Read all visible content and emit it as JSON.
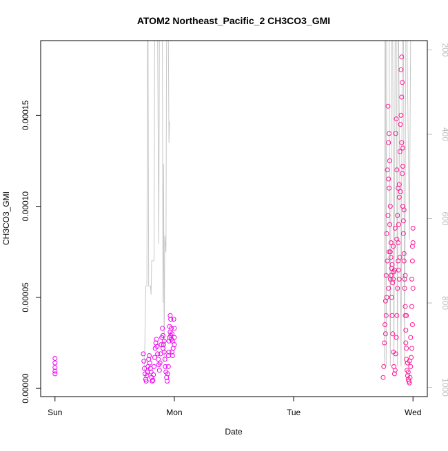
{
  "chart_data": {
    "type": "scatter",
    "title": "ATOM2 Northeast_Pacific_2 CH3CO3_GMI",
    "xlabel": "Date",
    "ylabel": "CH3CO3_GMI",
    "x_ticks": [
      "Sun",
      "Mon",
      "Tue",
      "Wed"
    ],
    "x_tick_positions_days": [
      0,
      1,
      2,
      3
    ],
    "xlim_days": [
      -0.12,
      3.12
    ],
    "ylim": [
      -4.5e-06,
      0.000191
    ],
    "y_ticks": [
      "0.00000",
      "0.00005",
      "0.00010",
      "0.00015"
    ],
    "y_tick_values": [
      0.0,
      5e-05,
      0.0001,
      0.00015
    ],
    "right_axis": {
      "ticks": [
        "200",
        "400",
        "600",
        "800",
        "1000"
      ],
      "values": [
        200,
        400,
        600,
        800,
        1000
      ],
      "ylim": [
        1022,
        178
      ],
      "color": "#bdbdbd",
      "series_color": "#c8c8c8"
    },
    "colors": {
      "early": "#ee00ee",
      "late": "#ff1493",
      "pressure": "#c8c8c8"
    },
    "pressure_series": {
      "name": "",
      "points": [
        [
          0.75,
          960
        ],
        [
          0.76,
          760
        ],
        [
          0.77,
          760
        ],
        [
          0.775,
          175
        ],
        [
          0.78,
          175
        ],
        [
          0.785,
          760
        ],
        [
          0.8,
          760
        ],
        [
          0.805,
          780
        ],
        [
          0.81,
          700
        ],
        [
          0.83,
          700
        ],
        [
          0.835,
          175
        ],
        [
          0.84,
          175
        ],
        [
          0.86,
          175
        ],
        [
          0.87,
          660
        ],
        [
          0.875,
          175
        ],
        [
          0.88,
          175
        ],
        [
          0.9,
          175
        ],
        [
          0.905,
          800
        ],
        [
          0.91,
          470
        ],
        [
          0.915,
          940
        ],
        [
          0.92,
          640
        ],
        [
          0.93,
          680
        ],
        [
          0.935,
          175
        ],
        [
          0.94,
          175
        ],
        [
          0.95,
          175
        ],
        [
          0.955,
          420
        ],
        [
          0.96,
          370
        ],
        [
          2.76,
          950
        ],
        [
          2.765,
          175
        ],
        [
          2.77,
          175
        ],
        [
          2.775,
          950
        ],
        [
          2.78,
          175
        ],
        [
          2.8,
          175
        ],
        [
          2.81,
          950
        ],
        [
          2.82,
          175
        ],
        [
          2.83,
          175
        ],
        [
          2.84,
          950
        ],
        [
          2.85,
          175
        ],
        [
          2.86,
          175
        ],
        [
          2.87,
          950
        ],
        [
          2.875,
          175
        ],
        [
          2.88,
          175
        ],
        [
          2.9,
          950
        ],
        [
          2.91,
          175
        ],
        [
          2.92,
          175
        ],
        [
          2.93,
          950
        ],
        [
          2.94,
          175
        ],
        [
          2.95,
          175
        ],
        [
          2.97,
          650
        ],
        [
          2.98,
          175
        ],
        [
          2.99,
          175
        ]
      ]
    },
    "series_early": {
      "name": "",
      "color": "#ee00ee",
      "points": [
        [
          0.0,
          1.65e-05
        ],
        [
          0.0,
          1.4e-05
        ],
        [
          0.0,
          1.15e-05
        ],
        [
          0.0,
          9.5e-06
        ],
        [
          0.0,
          8e-06
        ],
        [
          0.74,
          1.9e-05
        ],
        [
          0.745,
          1.5e-05
        ],
        [
          0.75,
          1.1e-05
        ],
        [
          0.755,
          8e-06
        ],
        [
          0.76,
          5e-06
        ],
        [
          0.765,
          4e-06
        ],
        [
          0.77,
          7e-06
        ],
        [
          0.775,
          9e-06
        ],
        [
          0.78,
          1.2e-05
        ],
        [
          0.785,
          1.6e-05
        ],
        [
          0.79,
          1.8e-05
        ],
        [
          0.795,
          1.4e-05
        ],
        [
          0.8,
          1.1e-05
        ],
        [
          0.805,
          9e-06
        ],
        [
          0.81,
          6e-06
        ],
        [
          0.815,
          4e-06
        ],
        [
          0.82,
          4.5e-06
        ],
        [
          0.825,
          7.5e-06
        ],
        [
          0.83,
          1.2e-05
        ],
        [
          0.835,
          1.7e-05
        ],
        [
          0.84,
          2.2e-05
        ],
        [
          0.845,
          2.5e-05
        ],
        [
          0.85,
          2.7e-05
        ],
        [
          0.855,
          2.3e-05
        ],
        [
          0.86,
          1.9e-05
        ],
        [
          0.865,
          1.6e-05
        ],
        [
          0.87,
          1.3e-05
        ],
        [
          0.875,
          1e-05
        ],
        [
          0.88,
          1.4e-05
        ],
        [
          0.885,
          1.9e-05
        ],
        [
          0.89,
          2.4e-05
        ],
        [
          0.895,
          2.8e-05
        ],
        [
          0.9,
          3.3e-05
        ],
        [
          0.905,
          2.9e-05
        ],
        [
          0.91,
          2.4e-05
        ],
        [
          0.915,
          2e-05
        ],
        [
          0.92,
          1.6e-05
        ],
        [
          0.925,
          1.2e-05
        ],
        [
          0.93,
          9e-06
        ],
        [
          0.935,
          6e-06
        ],
        [
          0.94,
          4e-06
        ],
        [
          0.945,
          8e-06
        ],
        [
          0.95,
          1.8e-05
        ],
        [
          0.955,
          2.6e-05
        ],
        [
          0.96,
          3.4e-05
        ],
        [
          0.965,
          4e-05
        ],
        [
          0.97,
          3.8e-05
        ],
        [
          0.975,
          3.3e-05
        ],
        [
          0.98,
          3e-05
        ],
        [
          0.985,
          2.6e-05
        ],
        [
          0.99,
          2.2e-05
        ],
        [
          0.995,
          3.8e-05
        ],
        [
          1.0,
          3.3e-05
        ],
        [
          1.0,
          2.8e-05
        ],
        [
          1.0,
          2.4e-05
        ],
        [
          0.905,
          2.2e-05
        ],
        [
          0.915,
          2.6e-05
        ],
        [
          0.95,
          1.2e-05
        ],
        [
          0.955,
          2e-05
        ],
        [
          0.96,
          2.8e-05
        ],
        [
          0.965,
          3.1e-05
        ],
        [
          0.97,
          2.9e-05
        ],
        [
          0.975,
          2.7e-05
        ],
        [
          0.98,
          2e-05
        ],
        [
          0.985,
          1.8e-05
        ]
      ]
    },
    "series_late": {
      "name": "",
      "color": "#ff1493",
      "points": [
        [
          2.75,
          6e-06
        ],
        [
          2.755,
          1.2e-05
        ],
        [
          2.76,
          2.5e-05
        ],
        [
          2.765,
          3.5e-05
        ],
        [
          2.77,
          4.8e-05
        ],
        [
          2.775,
          6.2e-05
        ],
        [
          2.78,
          8.5e-05
        ],
        [
          2.785,
          0.00012
        ],
        [
          2.79,
          0.000155
        ],
        [
          2.795,
          0.000135
        ],
        [
          2.8,
          0.00011
        ],
        [
          2.805,
          9e-05
        ],
        [
          2.81,
          7.5e-05
        ],
        [
          2.815,
          6.2e-05
        ],
        [
          2.82,
          5e-05
        ],
        [
          2.825,
          4e-05
        ],
        [
          2.83,
          3e-05
        ],
        [
          2.835,
          2e-05
        ],
        [
          2.84,
          1.2e-05
        ],
        [
          2.845,
          8e-06
        ],
        [
          2.85,
          1e-05
        ],
        [
          2.855,
          1.9e-05
        ],
        [
          2.86,
          2.8e-05
        ],
        [
          2.865,
          4e-05
        ],
        [
          2.87,
          5.5e-05
        ],
        [
          2.875,
          7e-05
        ],
        [
          2.88,
          9e-05
        ],
        [
          2.885,
          0.000112
        ],
        [
          2.89,
          0.00013
        ],
        [
          2.895,
          0.000145
        ],
        [
          2.9,
          0.00015
        ],
        [
          2.905,
          0.000135
        ],
        [
          2.91,
          0.000118
        ],
        [
          2.915,
          0.0001
        ],
        [
          2.92,
          8.5e-05
        ],
        [
          2.925,
          7e-05
        ],
        [
          2.93,
          5.5e-05
        ],
        [
          2.935,
          4e-05
        ],
        [
          2.94,
          2.5e-05
        ],
        [
          2.945,
          1.6e-05
        ],
        [
          2.95,
          1e-05
        ],
        [
          2.955,
          7e-06
        ],
        [
          2.96,
          5e-06
        ],
        [
          2.965,
          4e-06
        ],
        [
          2.97,
          3e-06
        ],
        [
          2.975,
          6e-06
        ],
        [
          2.98,
          1.2e-05
        ],
        [
          2.985,
          1.7e-05
        ],
        [
          2.99,
          2.2e-05
        ],
        [
          2.995,
          3.5e-05
        ],
        [
          3.0,
          5.5e-05
        ],
        [
          3.0,
          8e-05
        ],
        [
          3.0,
          8.8e-05
        ],
        [
          2.995,
          7e-05
        ],
        [
          2.99,
          4.5e-05
        ],
        [
          2.8,
          0.00014
        ],
        [
          2.805,
          0.000125
        ],
        [
          2.81,
          0.0001
        ],
        [
          2.815,
          8e-05
        ],
        [
          2.82,
          6.6e-05
        ],
        [
          2.83,
          5.8e-05
        ],
        [
          2.835,
          6e-05
        ],
        [
          2.84,
          6.4e-05
        ],
        [
          2.85,
          8.8e-05
        ],
        [
          2.855,
          0.00014
        ],
        [
          2.86,
          0.000148
        ],
        [
          2.865,
          0.00012
        ],
        [
          2.87,
          9.5e-05
        ],
        [
          2.875,
          8e-05
        ],
        [
          2.88,
          6.5e-05
        ],
        [
          2.885,
          6e-05
        ],
        [
          2.89,
          7.2e-05
        ],
        [
          2.895,
          0.000108
        ],
        [
          2.9,
          0.000175
        ],
        [
          2.905,
          0.000182
        ],
        [
          2.91,
          0.000168
        ],
        [
          2.915,
          0.000122
        ],
        [
          2.92,
          9.2e-05
        ],
        [
          2.925,
          7.4e-05
        ],
        [
          2.93,
          6e-05
        ],
        [
          2.935,
          4.5e-05
        ],
        [
          2.94,
          3.2e-05
        ],
        [
          2.945,
          2.2e-05
        ],
        [
          2.955,
          1.4e-05
        ],
        [
          2.96,
          9e-06
        ],
        [
          2.78,
          5e-05
        ],
        [
          2.785,
          7e-05
        ],
        [
          2.79,
          9.5e-05
        ],
        [
          2.795,
          0.000115
        ],
        [
          2.8,
          7.5e-05
        ],
        [
          2.81,
          6e-05
        ],
        [
          2.815,
          7.2e-05
        ],
        [
          2.825,
          6.8e-05
        ],
        [
          2.835,
          7.8e-05
        ],
        [
          2.845,
          6.5e-05
        ],
        [
          2.865,
          8.2e-05
        ],
        [
          2.875,
          0.00011
        ],
        [
          2.885,
          0.000105
        ],
        [
          2.905,
          0.00016
        ],
        [
          2.915,
          0.000132
        ],
        [
          2.925,
          9.8e-05
        ],
        [
          2.935,
          6.2e-05
        ],
        [
          2.945,
          4e-05
        ],
        [
          2.97,
          1.5e-05
        ],
        [
          2.98,
          2.8e-05
        ],
        [
          2.99,
          6e-05
        ],
        [
          2.995,
          7.8e-05
        ],
        [
          2.77,
          3e-05
        ],
        [
          2.775,
          4e-05
        ],
        [
          2.795,
          5.5e-05
        ]
      ]
    }
  }
}
